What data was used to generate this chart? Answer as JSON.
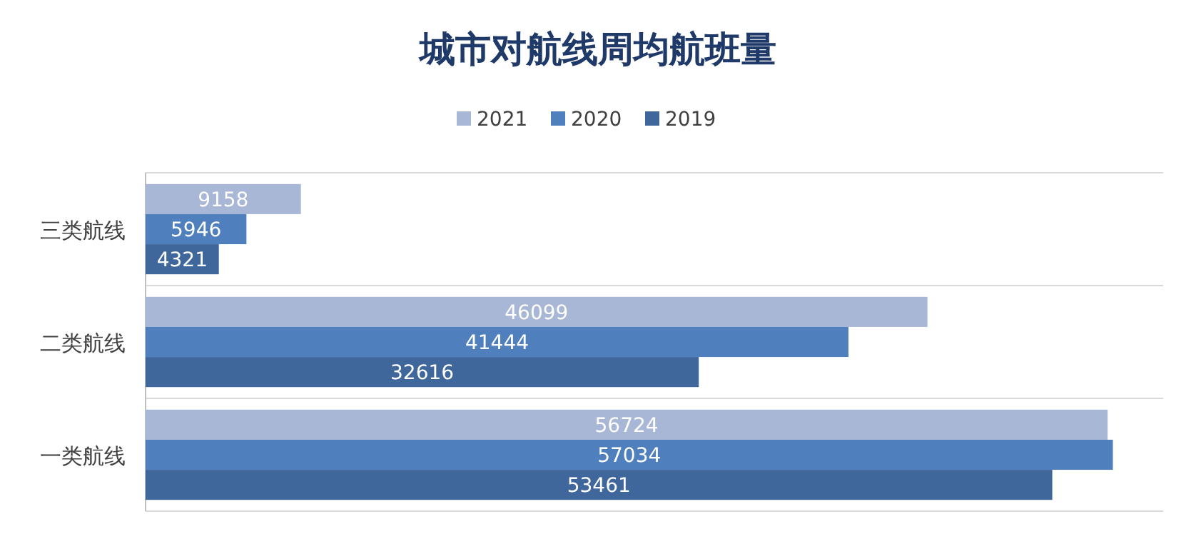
{
  "chart_data": {
    "type": "bar",
    "orientation": "horizontal",
    "title": "城市对航线周均航班量",
    "categories": [
      "三类航线",
      "二类航线",
      "一类航线"
    ],
    "series": [
      {
        "name": "2021",
        "color": "#a9b7d6",
        "values": [
          9158,
          46099,
          56724
        ]
      },
      {
        "name": "2020",
        "color": "#4f80bd",
        "values": [
          5946,
          41444,
          57034
        ]
      },
      {
        "name": "2019",
        "color": "#3f679c",
        "values": [
          4321,
          32616,
          53461
        ]
      }
    ],
    "xlim": [
      0,
      60000
    ],
    "data_labels": true,
    "grid": "y",
    "legend": "top",
    "tick_labels": "y"
  }
}
